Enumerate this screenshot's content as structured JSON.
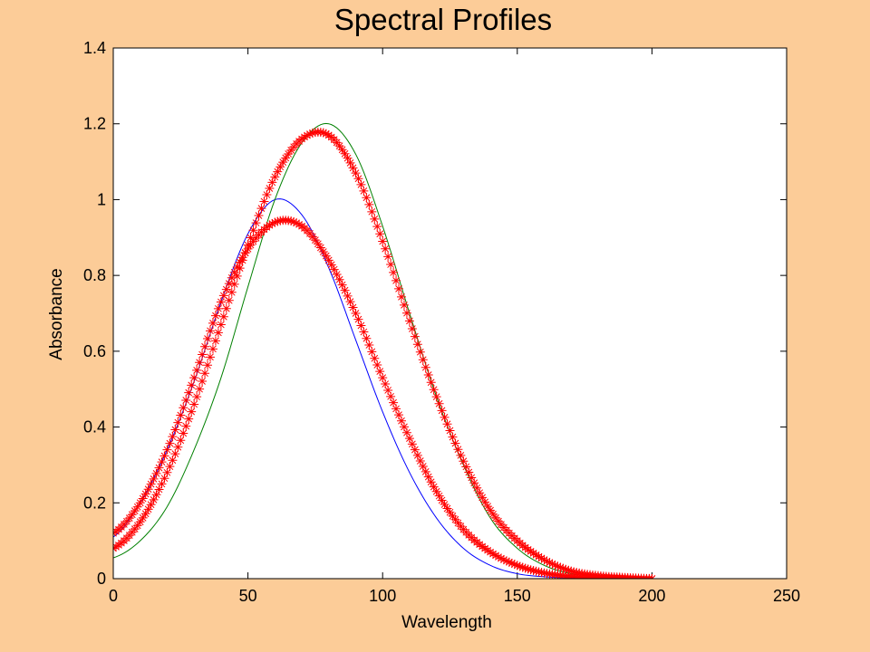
{
  "chart_data": {
    "type": "line",
    "title": "Spectral Profiles",
    "xlabel": "Wavelength",
    "ylabel": "Absorbance",
    "xlim": [
      0,
      250
    ],
    "ylim": [
      0,
      1.4
    ],
    "xticks": [
      0,
      50,
      100,
      150,
      200,
      250
    ],
    "yticks": [
      0,
      0.2,
      0.4,
      0.6,
      0.8,
      1,
      1.2,
      1.4
    ],
    "xtick_labels": [
      "0",
      "50",
      "100",
      "150",
      "200",
      "250"
    ],
    "ytick_labels": [
      "0",
      "0.2",
      "0.4",
      "0.6",
      "0.8",
      "1",
      "1.2",
      "1.4"
    ],
    "grid": false,
    "legend": "none",
    "colors": {
      "figure_background": "#FCCC98",
      "axes_background": "#FFFFFF",
      "component_1": "#0000FF",
      "component_2": "#008000",
      "fitted": "#FF0000"
    },
    "series": [
      {
        "color": "#0000FF",
        "style": "line",
        "x": [
          0,
          10,
          20,
          30,
          40,
          50,
          60,
          70,
          80,
          90,
          100,
          110,
          120,
          130,
          140,
          150,
          160,
          170,
          180,
          190,
          200
        ],
        "y": [
          0.11,
          0.2,
          0.34,
          0.52,
          0.73,
          0.91,
          1.0,
          0.96,
          0.82,
          0.63,
          0.44,
          0.28,
          0.16,
          0.08,
          0.035,
          0.013,
          0.005,
          0.002,
          0.001,
          0.0,
          0.0
        ]
      },
      {
        "color": "#008000",
        "style": "line",
        "x": [
          0,
          10,
          20,
          30,
          40,
          50,
          60,
          70,
          80,
          90,
          100,
          110,
          120,
          130,
          140,
          150,
          160,
          170,
          180,
          190,
          200
        ],
        "y": [
          0.055,
          0.1,
          0.19,
          0.34,
          0.53,
          0.77,
          1.0,
          1.15,
          1.2,
          1.12,
          0.93,
          0.7,
          0.48,
          0.3,
          0.16,
          0.08,
          0.035,
          0.013,
          0.005,
          0.002,
          0.0
        ]
      },
      {
        "color": "#FF0000",
        "style": "markers",
        "marker": "*",
        "x": [
          0,
          10,
          20,
          30,
          40,
          50,
          60,
          70,
          80,
          90,
          100,
          110,
          120,
          130,
          140,
          150,
          160,
          170,
          180,
          190,
          200
        ],
        "y": [
          0.08,
          0.15,
          0.28,
          0.46,
          0.67,
          0.88,
          1.06,
          1.16,
          1.17,
          1.07,
          0.89,
          0.68,
          0.48,
          0.31,
          0.18,
          0.1,
          0.05,
          0.02,
          0.008,
          0.003,
          0.0
        ]
      },
      {
        "color": "#FF0000",
        "style": "markers",
        "marker": "*",
        "x": [
          0,
          10,
          20,
          30,
          40,
          50,
          60,
          70,
          80,
          90,
          100,
          110,
          120,
          130,
          140,
          150,
          160,
          170,
          180,
          190,
          200
        ],
        "y": [
          0.12,
          0.2,
          0.34,
          0.53,
          0.73,
          0.87,
          0.94,
          0.93,
          0.84,
          0.7,
          0.53,
          0.37,
          0.23,
          0.13,
          0.07,
          0.035,
          0.015,
          0.006,
          0.002,
          0.001,
          0.0
        ]
      }
    ]
  }
}
